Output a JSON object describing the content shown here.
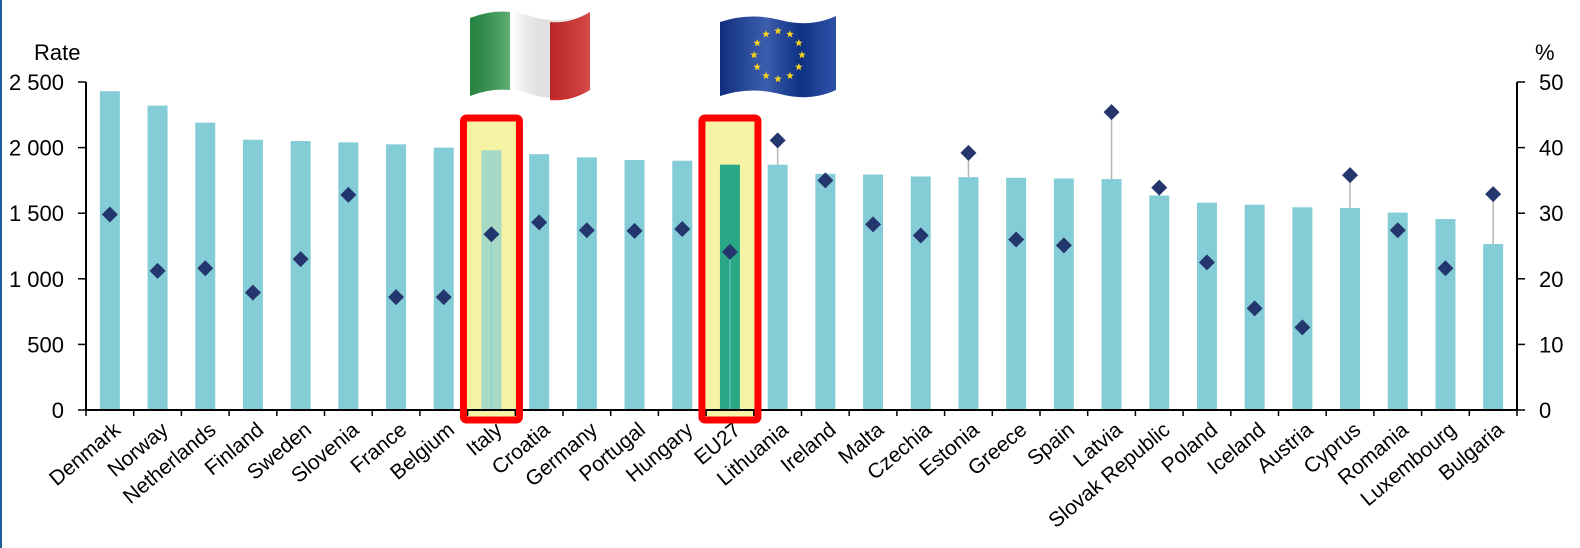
{
  "chart_data": {
    "type": "bar",
    "y_left_label": "Rate",
    "y_right_label": "%",
    "y_left_lim": [
      0,
      2500
    ],
    "y_right_lim": [
      0,
      50
    ],
    "y_left_ticks": [
      "0",
      "500",
      "1 000",
      "1 500",
      "2 000",
      "2 500"
    ],
    "y_right_ticks": [
      "0",
      "10",
      "20",
      "30",
      "40",
      "50"
    ],
    "grid": false,
    "categories": [
      "Denmark",
      "Norway",
      "Netherlands",
      "Finland",
      "Sweden",
      "Slovenia",
      "France",
      "Belgium",
      "Italy",
      "Croatia",
      "Germany",
      "Portugal",
      "Hungary",
      "EU27",
      "Lithuania",
      "Ireland",
      "Malta",
      "Czechia",
      "Estonia",
      "Greece",
      "Spain",
      "Latvia",
      "Slovak Republic",
      "Poland",
      "Iceland",
      "Austria",
      "Cyprus",
      "Romania",
      "Luxembourg",
      "Bulgaria"
    ],
    "series": [
      {
        "type": "bar",
        "axis": "left",
        "values": [
          2430,
          2320,
          2190,
          2060,
          2050,
          2040,
          2025,
          2000,
          1980,
          1950,
          1925,
          1905,
          1900,
          1870,
          1870,
          1800,
          1795,
          1780,
          1775,
          1770,
          1765,
          1760,
          1635,
          1580,
          1565,
          1545,
          1540,
          1505,
          1455,
          1265
        ]
      },
      {
        "type": "scatter",
        "axis": "right",
        "values": [
          29.8,
          21.2,
          21.6,
          17.9,
          23.0,
          32.8,
          17.2,
          17.2,
          26.8,
          28.6,
          27.4,
          27.3,
          27.6,
          24.1,
          41.1,
          35.0,
          28.3,
          26.6,
          39.2,
          26.0,
          25.1,
          45.4,
          33.9,
          22.5,
          15.5,
          12.6,
          35.8,
          27.4,
          21.6,
          32.9
        ]
      }
    ],
    "highlighted": [
      "Italy",
      "EU27"
    ],
    "colors": {
      "bar": "#85cdd6",
      "bar_eu": "#2aa785",
      "diamond": "#24366e",
      "whisker": "#b5b5b5",
      "highlight_box": "#ff0000",
      "highlight_fill": "#f7f3a4"
    }
  },
  "icons": {
    "italy_flag": "italy-flag-icon",
    "eu_flag": "eu-flag-icon"
  }
}
